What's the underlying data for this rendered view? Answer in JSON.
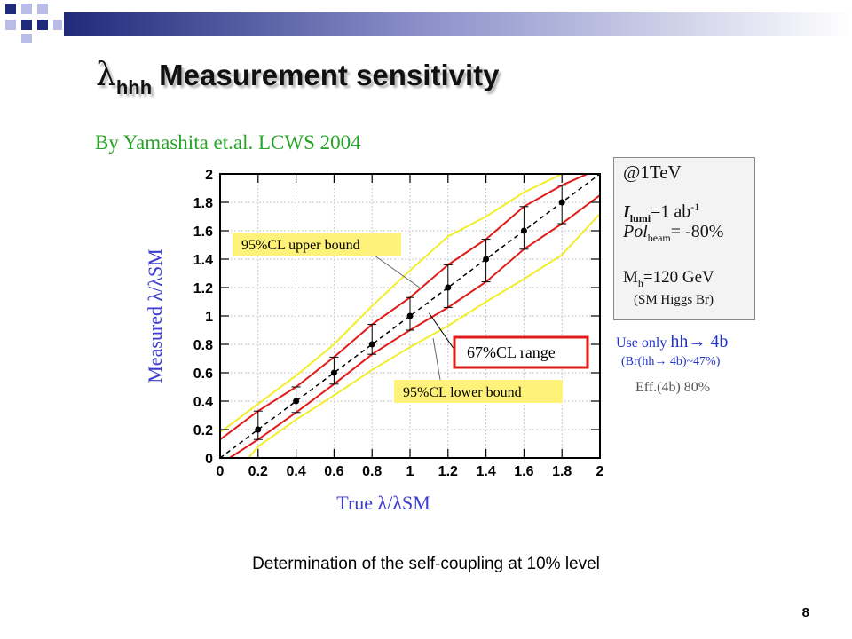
{
  "slide": {
    "title_symbol": "λ",
    "title_subscript": "hhh",
    "title_text": "Measurement sensitivity",
    "byline": "By Yamashita et.al. LCWS 2004",
    "caption": "Determination of the self-coupling at 10% level",
    "page_number": "8"
  },
  "infobox": {
    "energy": "@1TeV",
    "lumi_symbol": "I",
    "lumi_sub": "lumi",
    "lumi_value": "=1 ab",
    "lumi_exp": "-1",
    "pol_label": "Pol",
    "pol_sub": "beam",
    "pol_value": "= -80%",
    "mass_label": "M",
    "mass_sub": "h",
    "mass_value": "=120 GeV",
    "mass_note": "(SM Higgs Br)"
  },
  "notes": {
    "use_only": "Use only",
    "channel": "hh→ 4b",
    "br": "(Br(hh→ 4b)~47%)",
    "eff": "Eff.(4b) 80%"
  },
  "colors": {
    "title_shadow": "#b9b9b9",
    "byline": "#27a327",
    "axis_label": "#3b3bd6",
    "inner_band": "#e11a1a",
    "outer_band": "#f2ee2a",
    "label_bg": "#fff27a",
    "highlight_box": "#e11a1a",
    "note_blue": "#2233cc",
    "deco_navy": "#1f2a7a",
    "deco_lavender": "#b9bce6"
  },
  "chart_data": {
    "type": "line",
    "xlabel": "True λ/λSM",
    "ylabel": "Measured λ/λSM",
    "xlim": [
      0,
      2
    ],
    "ylim": [
      0,
      2
    ],
    "xticks": [
      "0",
      "0.2",
      "0.4",
      "0.6",
      "0.8",
      "1",
      "1.2",
      "1.4",
      "1.6",
      "1.8",
      "2"
    ],
    "yticks": [
      "0",
      "0.2",
      "0.4",
      "0.6",
      "0.8",
      "1",
      "1.2",
      "1.4",
      "1.6",
      "1.8",
      "2"
    ],
    "grid": true,
    "reference_line": {
      "x": [
        0,
        2
      ],
      "y": [
        0,
        2
      ],
      "style": "dashed"
    },
    "points": {
      "x": [
        0.2,
        0.4,
        0.6,
        0.8,
        1.0,
        1.2,
        1.4,
        1.6,
        1.8
      ],
      "y": [
        0.2,
        0.4,
        0.6,
        0.8,
        1.0,
        1.2,
        1.4,
        1.6,
        1.8
      ],
      "err_low": [
        0.13,
        0.32,
        0.52,
        0.73,
        0.9,
        1.06,
        1.24,
        1.47,
        1.65
      ],
      "err_high": [
        0.33,
        0.5,
        0.71,
        0.94,
        1.13,
        1.36,
        1.54,
        1.77,
        1.92
      ]
    },
    "series": [
      {
        "role": "67%CL upper",
        "x": [
          0,
          0.2,
          0.4,
          0.6,
          0.8,
          1.0,
          1.2,
          1.4,
          1.6,
          1.8,
          2.0
        ],
        "y": [
          0.13,
          0.33,
          0.5,
          0.71,
          0.94,
          1.13,
          1.36,
          1.54,
          1.77,
          1.92,
          2.04
        ]
      },
      {
        "role": "67%CL lower",
        "x": [
          0.05,
          0.2,
          0.4,
          0.6,
          0.8,
          1.0,
          1.2,
          1.4,
          1.6,
          1.8,
          2.0
        ],
        "y": [
          0,
          0.13,
          0.32,
          0.52,
          0.73,
          0.9,
          1.06,
          1.24,
          1.47,
          1.65,
          1.85
        ]
      },
      {
        "role": "95%CL upper",
        "x": [
          0,
          0.2,
          0.4,
          0.6,
          0.8,
          1.0,
          1.2,
          1.4,
          1.6,
          1.8,
          1.95
        ],
        "y": [
          0.18,
          0.38,
          0.58,
          0.8,
          1.07,
          1.32,
          1.56,
          1.7,
          1.87,
          2.0,
          2.04
        ]
      },
      {
        "role": "95%CL lower",
        "x": [
          0.15,
          0.2,
          0.4,
          0.6,
          0.8,
          1.0,
          1.2,
          1.4,
          1.6,
          1.8,
          2.0
        ],
        "y": [
          0,
          0.08,
          0.27,
          0.44,
          0.62,
          0.78,
          0.93,
          1.1,
          1.26,
          1.43,
          1.72
        ]
      }
    ],
    "annotations": [
      {
        "text": "95%CL upper bound",
        "points_to": [
          1.05,
          1.2
        ]
      },
      {
        "text": "67%CL range",
        "points_to": [
          1.1,
          1.02
        ]
      },
      {
        "text": "95%CL lower bound",
        "points_to": [
          1.15,
          0.78
        ]
      }
    ]
  }
}
